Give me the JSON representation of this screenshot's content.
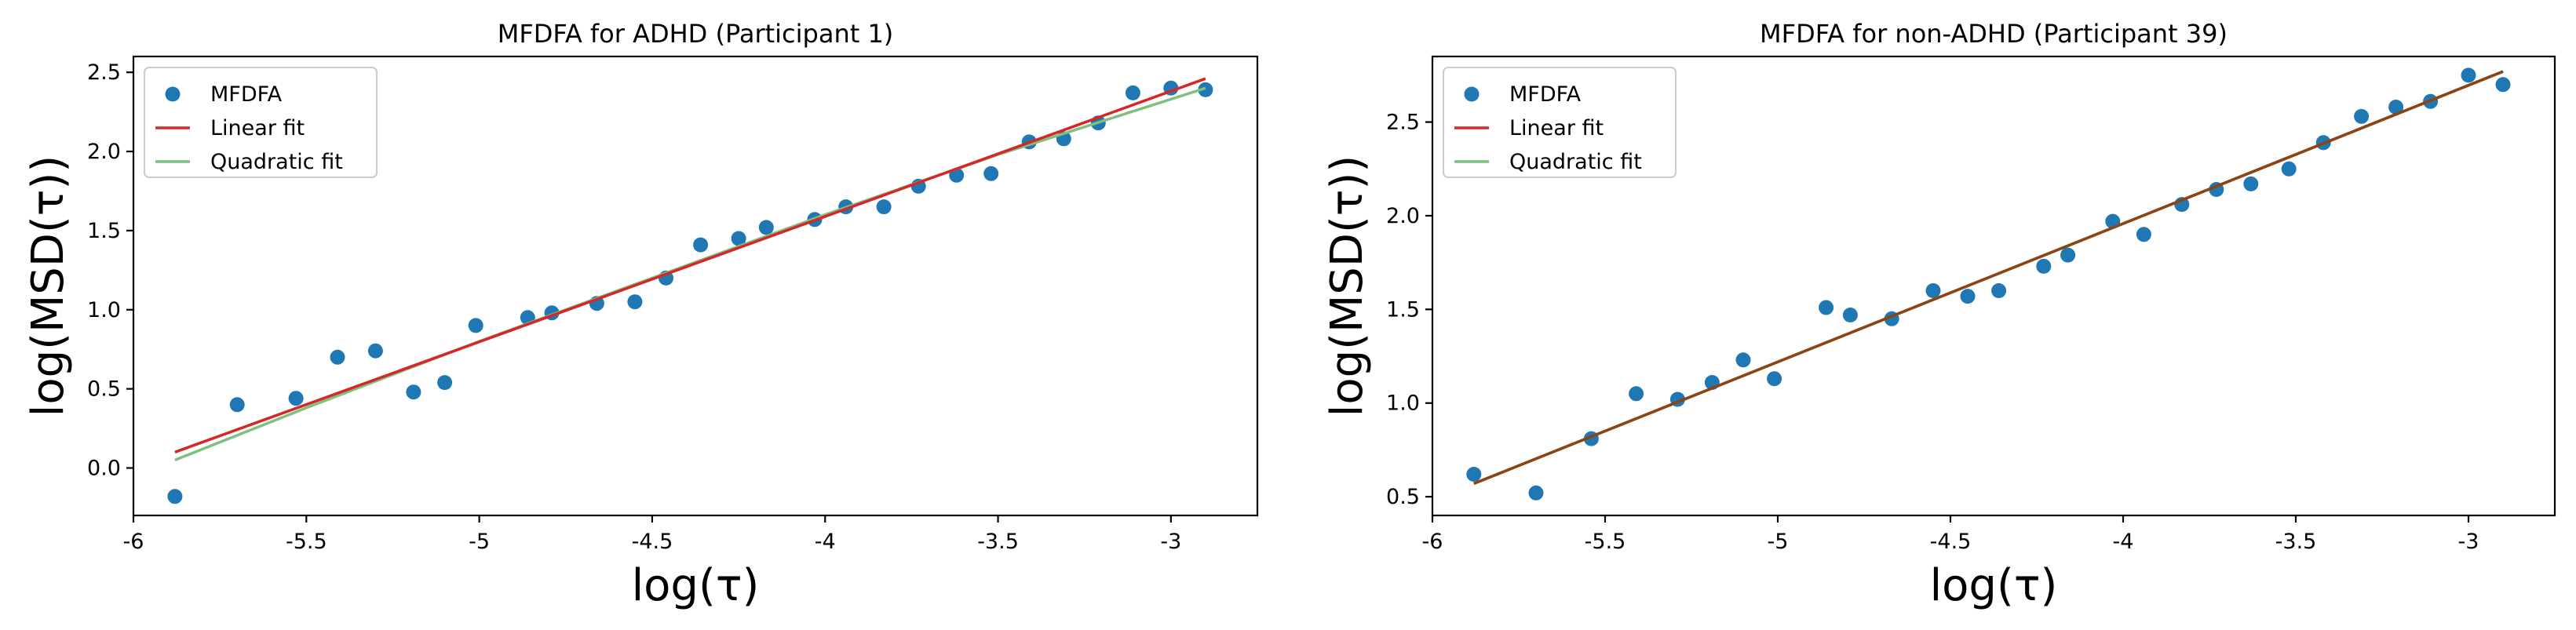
{
  "colors": {
    "points": "#1f77b4",
    "linear": "#d62728",
    "quadratic": "#7fbf7f",
    "overlap": "#8b4513"
  },
  "chart_data": [
    {
      "type": "scatter",
      "title": "MFDFA for ADHD (Participant 1)",
      "xlabel": "log(τ)",
      "ylabel": "log(MSD(τ))",
      "xlim": [
        -6.0,
        -2.75
      ],
      "ylim": [
        -0.3,
        2.6
      ],
      "xticks": [
        -6,
        -5.5,
        -5,
        -4.5,
        -4,
        -3.5,
        -3
      ],
      "xtick_labels": [
        "-6",
        "-5.5",
        "-5",
        "-4.5",
        "-4",
        "-3.5",
        "-3"
      ],
      "yticks": [
        0.0,
        0.5,
        1.0,
        1.5,
        2.0,
        2.5
      ],
      "ytick_labels": [
        "0.0",
        "0.5",
        "1.0",
        "1.5",
        "2.0",
        "2.5"
      ],
      "legend": [
        "MFDFA",
        "Linear fit",
        "Quadratic fit"
      ],
      "legend_loc": "upper-left",
      "series": [
        {
          "name": "MFDFA",
          "x": [
            -5.88,
            -5.7,
            -5.53,
            -5.41,
            -5.3,
            -5.19,
            -5.1,
            -5.01,
            -4.86,
            -4.79,
            -4.66,
            -4.55,
            -4.46,
            -4.36,
            -4.25,
            -4.17,
            -4.03,
            -3.94,
            -3.83,
            -3.73,
            -3.62,
            -3.52,
            -3.41,
            -3.31,
            -3.21,
            -3.11,
            -3.0,
            -2.9
          ],
          "y": [
            -0.18,
            0.4,
            0.44,
            0.7,
            0.74,
            0.48,
            0.54,
            0.9,
            0.95,
            0.98,
            1.04,
            1.05,
            1.2,
            1.41,
            1.45,
            1.52,
            1.57,
            1.65,
            1.65,
            1.78,
            1.85,
            1.86,
            2.06,
            2.08,
            2.18,
            2.37,
            2.4,
            2.39
          ]
        },
        {
          "name": "Linear fit",
          "x": [
            -5.88,
            -2.9
          ],
          "y": [
            0.1,
            2.46
          ]
        },
        {
          "name": "Quadratic fit",
          "x": [
            -5.88,
            -5.5,
            -5.0,
            -4.5,
            -4.0,
            -3.5,
            -2.9
          ],
          "y": [
            0.05,
            0.38,
            0.8,
            1.2,
            1.6,
            1.98,
            2.4
          ]
        }
      ]
    },
    {
      "type": "scatter",
      "title": "MFDFA for non-ADHD (Participant 39)",
      "xlabel": "log(τ)",
      "ylabel": "log(MSD(τ))",
      "xlim": [
        -6.0,
        -2.75
      ],
      "ylim": [
        0.4,
        2.85
      ],
      "xticks": [
        -6,
        -5.5,
        -5,
        -4.5,
        -4,
        -3.5,
        -3
      ],
      "xtick_labels": [
        "-6",
        "-5.5",
        "-5",
        "-4.5",
        "-4",
        "-3.5",
        "-3"
      ],
      "yticks": [
        0.5,
        1.0,
        1.5,
        2.0,
        2.5
      ],
      "ytick_labels": [
        "0.5",
        "1.0",
        "1.5",
        "2.0",
        "2.5"
      ],
      "legend": [
        "MFDFA",
        "Linear fit",
        "Quadratic fit"
      ],
      "legend_loc": "upper-left",
      "series": [
        {
          "name": "MFDFA",
          "x": [
            -5.88,
            -5.7,
            -5.54,
            -5.41,
            -5.29,
            -5.19,
            -5.1,
            -5.01,
            -4.86,
            -4.79,
            -4.67,
            -4.55,
            -4.45,
            -4.36,
            -4.23,
            -4.16,
            -4.03,
            -3.94,
            -3.83,
            -3.73,
            -3.63,
            -3.52,
            -3.42,
            -3.31,
            -3.21,
            -3.11,
            -3.0,
            -2.9
          ],
          "y": [
            0.62,
            0.52,
            0.81,
            1.05,
            1.02,
            1.11,
            1.23,
            1.13,
            1.51,
            1.47,
            1.45,
            1.6,
            1.57,
            1.6,
            1.73,
            1.79,
            1.97,
            1.9,
            2.06,
            2.14,
            2.17,
            2.25,
            2.39,
            2.53,
            2.58,
            2.61,
            2.75,
            2.7
          ]
        },
        {
          "name": "Linear fit",
          "x": [
            -5.88,
            -2.9
          ],
          "y": [
            0.57,
            2.77
          ]
        },
        {
          "name": "Quadratic fit",
          "x": [
            -5.88,
            -2.9
          ],
          "y": [
            0.57,
            2.77
          ]
        }
      ]
    }
  ]
}
